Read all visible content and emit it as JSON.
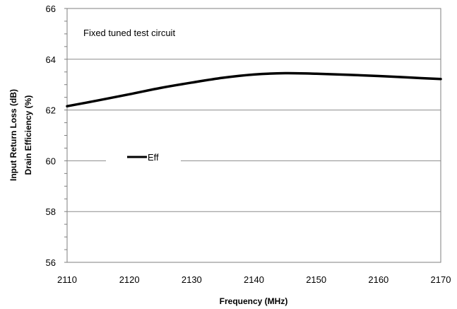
{
  "chart_data": {
    "type": "line",
    "title": "",
    "annotation": "Fixed tuned test circuit",
    "xlabel": "Frequency (MHz)",
    "ylabel_lines": [
      "Input Return Loss (dB)",
      "Drain Efficiency (%)"
    ],
    "xlim": [
      2110,
      2170
    ],
    "ylim": [
      56,
      66
    ],
    "x_ticks": [
      2110,
      2120,
      2130,
      2140,
      2150,
      2160,
      2170
    ],
    "y_ticks": [
      56,
      58,
      60,
      62,
      64,
      66
    ],
    "grid": "horizontal",
    "legend_placement": "center-left",
    "series": [
      {
        "name": "Eff",
        "color": "#000000",
        "x": [
          2110,
          2115,
          2120,
          2125,
          2130,
          2135,
          2140,
          2145,
          2150,
          2155,
          2160,
          2165,
          2170
        ],
        "y": [
          62.15,
          62.38,
          62.62,
          62.87,
          63.08,
          63.27,
          63.4,
          63.45,
          63.43,
          63.39,
          63.34,
          63.28,
          63.22
        ]
      }
    ]
  }
}
